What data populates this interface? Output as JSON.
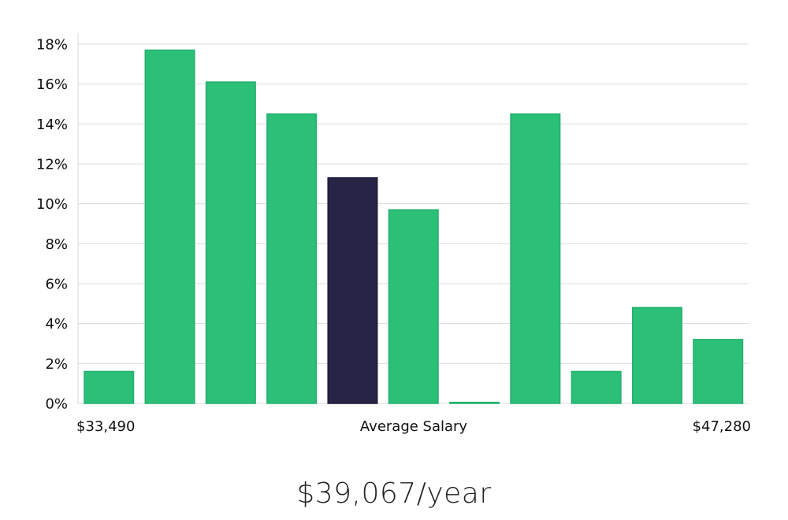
{
  "chart_data": {
    "type": "bar",
    "title": "",
    "xlabel": "Average Salary",
    "ylabel": "",
    "x_min_label": "$33,490",
    "x_max_label": "$47,280",
    "ylim": [
      0,
      18
    ],
    "y_ticks": [
      0,
      2,
      4,
      6,
      8,
      10,
      12,
      14,
      16,
      18
    ],
    "y_tick_labels": [
      "0%",
      "2%",
      "4%",
      "6%",
      "8%",
      "10%",
      "12%",
      "14%",
      "16%",
      "18%"
    ],
    "grid": true,
    "values": [
      1.6,
      17.7,
      16.1,
      14.5,
      11.3,
      9.7,
      0.05,
      14.5,
      1.6,
      4.8,
      3.2
    ],
    "highlight_index": 4,
    "colors": {
      "bar": "#2bbf78",
      "bar_stroke": "#22b06c",
      "highlight": "#282445",
      "highlight_stroke": "#1c1a36"
    }
  },
  "summary": {
    "average_salary": "$39,067/year"
  }
}
